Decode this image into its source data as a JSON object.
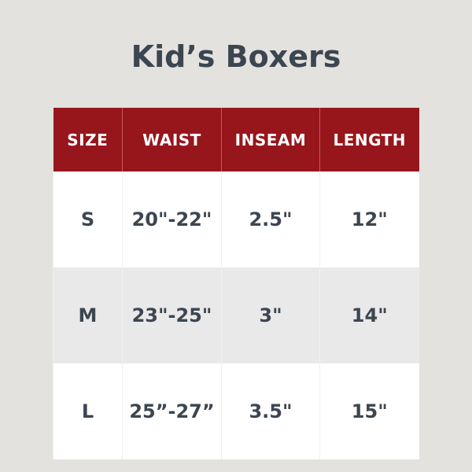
{
  "title": "Kid’s Boxers",
  "colors": {
    "header_bg": "#97161b",
    "text": "#3c4651"
  },
  "table": {
    "headers": [
      "SIZE",
      "WAIST",
      "INSEAM",
      "LENGTH"
    ],
    "rows": [
      [
        "S",
        "20\"-22\"",
        "2.5\"",
        "12\""
      ],
      [
        "M",
        "23\"-25\"",
        "3\"",
        "14\""
      ],
      [
        "L",
        "25”-27”",
        "3.5\"",
        "15\""
      ]
    ]
  }
}
